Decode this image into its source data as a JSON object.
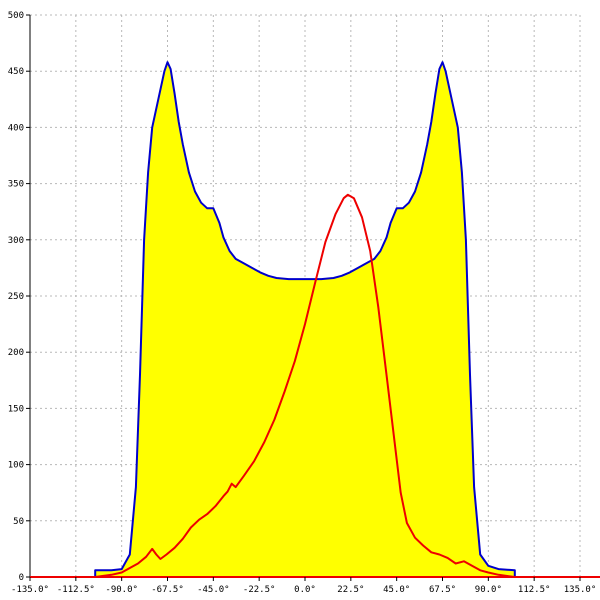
{
  "chart_data": {
    "type": "area",
    "xlim": [
      -135,
      135
    ],
    "ylim": [
      0,
      500
    ],
    "grid": true,
    "x_ticks": [
      {
        "value": -135,
        "label": "-135.0°"
      },
      {
        "value": -112.5,
        "label": "-112.5°"
      },
      {
        "value": -90,
        "label": "-90.0°"
      },
      {
        "value": -67.5,
        "label": "-67.5°"
      },
      {
        "value": -45,
        "label": "-45.0°"
      },
      {
        "value": -22.5,
        "label": "-22.5°"
      },
      {
        "value": 0,
        "label": "0.0°"
      },
      {
        "value": 22.5,
        "label": "22.5°"
      },
      {
        "value": 45,
        "label": "45.0°"
      },
      {
        "value": 67.5,
        "label": "67.5°"
      },
      {
        "value": 90,
        "label": "90.0°"
      },
      {
        "value": 112.5,
        "label": "112.5°"
      },
      {
        "value": 135,
        "label": "135.0°"
      }
    ],
    "y_ticks": [
      {
        "value": 0,
        "label": "0"
      },
      {
        "value": 50,
        "label": "50"
      },
      {
        "value": 100,
        "label": "100"
      },
      {
        "value": 150,
        "label": "150"
      },
      {
        "value": 200,
        "label": "200"
      },
      {
        "value": 250,
        "label": "250"
      },
      {
        "value": 300,
        "label": "300"
      },
      {
        "value": 350,
        "label": "350"
      },
      {
        "value": 400,
        "label": "400"
      },
      {
        "value": 450,
        "label": "450"
      },
      {
        "value": 500,
        "label": "500"
      }
    ],
    "series": [
      {
        "color": "#0000cc",
        "fill": "#ffff00",
        "filled": true,
        "points": [
          [
            -103,
            0
          ],
          [
            -103,
            6
          ],
          [
            -95,
            6
          ],
          [
            -90,
            7
          ],
          [
            -86,
            20
          ],
          [
            -83,
            80
          ],
          [
            -81,
            180
          ],
          [
            -79,
            300
          ],
          [
            -77,
            360
          ],
          [
            -75,
            400
          ],
          [
            -72,
            425
          ],
          [
            -69,
            450
          ],
          [
            -67.5,
            458
          ],
          [
            -66,
            452
          ],
          [
            -64,
            430
          ],
          [
            -62,
            405
          ],
          [
            -60,
            385
          ],
          [
            -57,
            360
          ],
          [
            -54,
            343
          ],
          [
            -51,
            333
          ],
          [
            -48,
            328
          ],
          [
            -45,
            328
          ],
          [
            -42,
            315
          ],
          [
            -40,
            302
          ],
          [
            -37,
            290
          ],
          [
            -34,
            283
          ],
          [
            -30,
            279
          ],
          [
            -26,
            275
          ],
          [
            -22,
            271
          ],
          [
            -18,
            268
          ],
          [
            -14,
            266
          ],
          [
            -8,
            265
          ],
          [
            0,
            265
          ],
          [
            8,
            265
          ],
          [
            14,
            266
          ],
          [
            18,
            268
          ],
          [
            22,
            271
          ],
          [
            26,
            275
          ],
          [
            30,
            279
          ],
          [
            34,
            283
          ],
          [
            37,
            290
          ],
          [
            40,
            302
          ],
          [
            42,
            315
          ],
          [
            45,
            328
          ],
          [
            48,
            328
          ],
          [
            51,
            333
          ],
          [
            54,
            343
          ],
          [
            57,
            360
          ],
          [
            60,
            385
          ],
          [
            62,
            405
          ],
          [
            64,
            430
          ],
          [
            66,
            452
          ],
          [
            67.5,
            458
          ],
          [
            69,
            450
          ],
          [
            72,
            425
          ],
          [
            75,
            400
          ],
          [
            77,
            360
          ],
          [
            79,
            300
          ],
          [
            81,
            180
          ],
          [
            83,
            80
          ],
          [
            86,
            20
          ],
          [
            90,
            10
          ],
          [
            95,
            7
          ],
          [
            103,
            6
          ],
          [
            103,
            0
          ]
        ]
      },
      {
        "color": "#ee0000",
        "fill": null,
        "filled": false,
        "points": [
          [
            -135,
            0
          ],
          [
            -103,
            0
          ],
          [
            -95,
            2
          ],
          [
            -90,
            4
          ],
          [
            -86,
            8
          ],
          [
            -82,
            12
          ],
          [
            -78,
            18
          ],
          [
            -75,
            25
          ],
          [
            -73,
            20
          ],
          [
            -71,
            16
          ],
          [
            -68,
            20
          ],
          [
            -64,
            26
          ],
          [
            -60,
            34
          ],
          [
            -56,
            44
          ],
          [
            -52,
            51
          ],
          [
            -48,
            56
          ],
          [
            -44,
            63
          ],
          [
            -40,
            72
          ],
          [
            -38,
            76
          ],
          [
            -36,
            83
          ],
          [
            -34,
            80
          ],
          [
            -30,
            90
          ],
          [
            -25,
            103
          ],
          [
            -20,
            120
          ],
          [
            -15,
            140
          ],
          [
            -10,
            165
          ],
          [
            -5,
            192
          ],
          [
            0,
            225
          ],
          [
            5,
            262
          ],
          [
            10,
            298
          ],
          [
            15,
            323
          ],
          [
            19,
            337
          ],
          [
            21,
            340
          ],
          [
            24,
            337
          ],
          [
            28,
            320
          ],
          [
            32,
            290
          ],
          [
            36,
            240
          ],
          [
            40,
            180
          ],
          [
            44,
            120
          ],
          [
            47,
            75
          ],
          [
            50,
            48
          ],
          [
            54,
            35
          ],
          [
            58,
            28
          ],
          [
            62,
            22
          ],
          [
            66,
            20
          ],
          [
            70,
            17
          ],
          [
            74,
            12
          ],
          [
            78,
            14
          ],
          [
            82,
            10
          ],
          [
            86,
            6
          ],
          [
            90,
            4
          ],
          [
            95,
            2
          ],
          [
            103,
            0
          ],
          [
            135,
            0
          ]
        ]
      }
    ]
  }
}
